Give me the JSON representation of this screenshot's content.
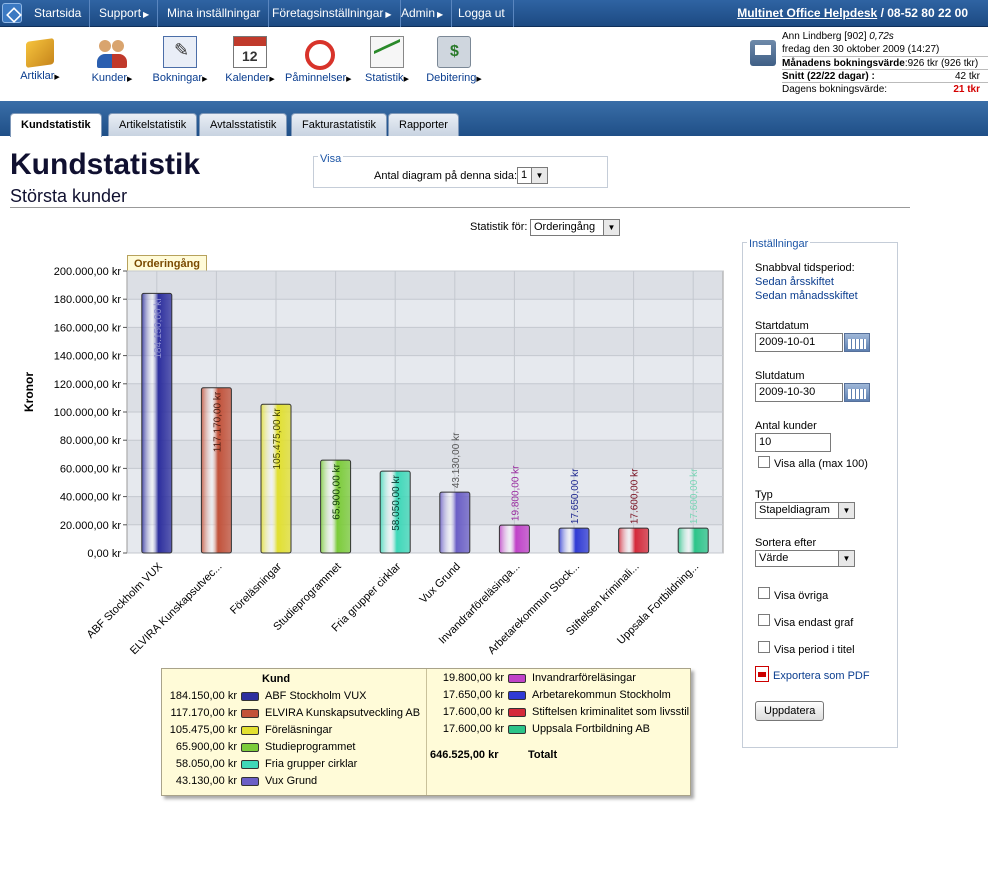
{
  "topnav": {
    "items": [
      "Startsida",
      "Support",
      "Mina inställningar",
      "Företagsinställningar",
      "Admin",
      "Logga ut"
    ],
    "has_arrow": [
      false,
      true,
      false,
      true,
      true,
      false
    ],
    "helpdesk": "Multinet Office Helpdesk",
    "helpdesk_sep": " / ",
    "phone": "08-52 80 22 00"
  },
  "toolbar": {
    "items": [
      {
        "label": "Artiklar",
        "icon": "box-icon"
      },
      {
        "label": "Kunder",
        "icon": "people-icon"
      },
      {
        "label": "Bokningar",
        "icon": "booking-icon"
      },
      {
        "label": "Kalender",
        "icon": "calendar-icon"
      },
      {
        "label": "Påminnelser",
        "icon": "alarm-clock-icon"
      },
      {
        "label": "Statistik",
        "icon": "chart-icon"
      },
      {
        "label": "Debitering",
        "icon": "cash-register-icon"
      }
    ]
  },
  "user": {
    "name": "Ann Lindberg [902]",
    "load": "0,72s",
    "date": "fredag den 30 oktober 2009 (14:27)",
    "month_label": "Månadens bokningsvärde",
    "month_value": ":926 tkr (926 tkr)",
    "avg_label": "Snitt (22/22 dagar) :",
    "avg_value": "42 tkr",
    "day_label": "Dagens bokningsvärde:",
    "day_value": "21 tkr"
  },
  "tabs": [
    "Kundstatistik",
    "Artikelstatistik",
    "Avtalsstatistik",
    "Fakturastatistik",
    "Rapporter"
  ],
  "active_tab": 0,
  "page": {
    "title": "Kundstatistik",
    "subtitle": "Största kunder"
  },
  "visa": {
    "legend": "Visa",
    "label": "Antal diagram på denna sida:",
    "value": "1"
  },
  "statfor": {
    "label": "Statistik för:",
    "value": "Orderingång"
  },
  "chart_tab": "Orderingång",
  "chart_data": {
    "type": "bar",
    "title": "Orderingång",
    "ylabel": "Kronor",
    "ylim": [
      0,
      200000
    ],
    "yticks": [
      "0,00 kr",
      "20.000,00 kr",
      "40.000,00 kr",
      "60.000,00 kr",
      "80.000,00 kr",
      "100.000,00 kr",
      "120.000,00 kr",
      "140.000,00 kr",
      "160.000,00 kr",
      "180.000,00 kr",
      "200.000,00 kr"
    ],
    "categories": [
      "ABF Stockholm VUX",
      "ELVIRA Kunskapsutvec...",
      "Föreläsningar",
      "Studieprogrammet",
      "Fria grupper cirklar",
      "Vux Grund",
      "Invandrarföreläsinga...",
      "Arbetarekommun Stock...",
      "Stiftelsen kriminali...",
      "Uppsala Fortbildning..."
    ],
    "values": [
      184150,
      117170,
      105475,
      65900,
      58050,
      43130,
      19800,
      17650,
      17600,
      17600
    ],
    "value_labels": [
      "184.150,00 kr",
      "117.170,00 kr",
      "105.475,00 kr",
      "65.900,00 kr",
      "58.050,00 kr",
      "43.130,00 kr",
      "19.800,00 kr",
      "17.650,00 kr",
      "17.600,00 kr",
      "17.600,00 kr"
    ],
    "colors": [
      "#2d2f9e",
      "#c2523a",
      "#e2e030",
      "#7ccc3a",
      "#3ed8b8",
      "#6b5fc6",
      "#c042c8",
      "#2f3ad4",
      "#d42a3a",
      "#2cc489"
    ],
    "label_colors": [
      "#8d8fd0",
      "#4a1b10",
      "#444400",
      "#0e3a06",
      "#073a30",
      "#555555",
      "#9a2aa0",
      "#1f2890",
      "#7a1020",
      "#7ad6b6"
    ],
    "label_inside": [
      true,
      true,
      true,
      true,
      true,
      false,
      false,
      false,
      false,
      false
    ],
    "grid": true
  },
  "legend_table": {
    "header": "Kund",
    "left": [
      {
        "value": "184.150,00 kr",
        "name": "ABF Stockholm VUX",
        "color": "#2d2f9e"
      },
      {
        "value": "117.170,00 kr",
        "name": "ELVIRA Kunskapsutveckling AB",
        "color": "#c2523a"
      },
      {
        "value": "105.475,00 kr",
        "name": "Föreläsningar",
        "color": "#e2e030"
      },
      {
        "value": "65.900,00 kr",
        "name": "Studieprogrammet",
        "color": "#7ccc3a"
      },
      {
        "value": "58.050,00 kr",
        "name": "Fria grupper cirklar",
        "color": "#3ed8b8"
      },
      {
        "value": "43.130,00 kr",
        "name": "Vux Grund",
        "color": "#6b5fc6"
      }
    ],
    "right": [
      {
        "value": "19.800,00 kr",
        "name": "Invandrarföreläsingar",
        "color": "#c042c8"
      },
      {
        "value": "17.650,00 kr",
        "name": "Arbetarekommun Stockholm",
        "color": "#2f3ad4"
      },
      {
        "value": "17.600,00 kr",
        "name": "Stiftelsen kriminalitet som livsstil",
        "color": "#d42a3a"
      },
      {
        "value": "17.600,00 kr",
        "name": "Uppsala Fortbildning AB",
        "color": "#2cc489"
      }
    ],
    "total_value": "646.525,00 kr",
    "total_label": "Totalt"
  },
  "settings": {
    "legend": "Inställningar",
    "quick_label": "Snabbval tidsperiod:",
    "quick_year": "Sedan årsskiftet",
    "quick_month": "Sedan månadsskiftet",
    "start_label": "Startdatum",
    "start_value": "2009-10-01",
    "end_label": "Slutdatum",
    "end_value": "2009-10-30",
    "count_label": "Antal kunder",
    "count_value": "10",
    "show_all": "Visa alla (max 100)",
    "type_label": "Typ",
    "type_value": "Stapeldiagram",
    "sort_label": "Sortera efter",
    "sort_value": "Värde",
    "show_other": "Visa övriga",
    "graph_only": "Visa endast graf",
    "period_title": "Visa period i titel",
    "export": "Exportera som PDF",
    "update": "Uppdatera"
  }
}
